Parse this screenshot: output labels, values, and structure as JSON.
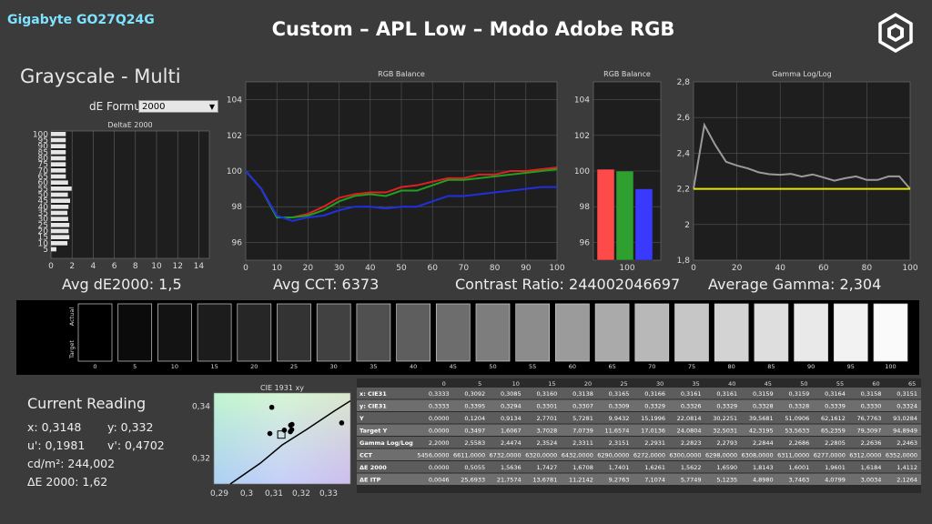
{
  "brand": "Gigabyte GO27Q24G",
  "title": "Custom – APL Low – Modo Adobe RGB",
  "section_title": "Grayscale - Multi",
  "de_formula": {
    "label": "dE Formula:",
    "value": "2000"
  },
  "stats": {
    "avg_de": "Avg dE2000: 1,5",
    "avg_cct": "Avg CCT: 6373",
    "contrast": "Contrast Ratio: 244002046697",
    "avg_gamma": "Average Gamma: 2,304"
  },
  "colors": {
    "bg": "#3b3b3b",
    "red": "#e02020",
    "green": "#20a020",
    "blue": "#2030e0",
    "target": "#e8e800",
    "gamma": "#9a9a9a"
  },
  "chart_data": [
    {
      "type": "bar",
      "title": "DeltaE 2000",
      "orientation": "horizontal",
      "categories": [
        "0",
        "5",
        "10",
        "15",
        "20",
        "25",
        "30",
        "35",
        "40",
        "45",
        "50",
        "55",
        "60",
        "65",
        "70",
        "75",
        "80",
        "85",
        "90",
        "95",
        "100"
      ],
      "values": [
        0.0,
        0.51,
        1.56,
        1.74,
        1.67,
        1.74,
        1.63,
        1.56,
        1.66,
        1.81,
        1.6,
        1.96,
        1.62,
        1.41,
        1.4,
        1.4,
        1.4,
        1.4,
        1.4,
        1.4,
        1.4
      ],
      "y_ticks": [
        "5",
        "10",
        "15",
        "20",
        "25",
        "30",
        "35",
        "40",
        "45",
        "50",
        "55",
        "60",
        "65",
        "70",
        "75",
        "80",
        "85",
        "90",
        "95",
        "100"
      ],
      "x_ticks": [
        "0",
        "2",
        "4",
        "6",
        "8",
        "10",
        "12",
        "14"
      ],
      "xlim": [
        0,
        15
      ]
    },
    {
      "type": "line",
      "title": "RGB Balance",
      "x": [
        0,
        5,
        10,
        15,
        20,
        25,
        30,
        35,
        40,
        45,
        50,
        55,
        60,
        65,
        70,
        75,
        80,
        85,
        90,
        95,
        100
      ],
      "series": [
        {
          "color": "#e02020",
          "values": [
            100,
            99.0,
            97.4,
            97.4,
            97.6,
            98.0,
            98.5,
            98.7,
            98.8,
            98.8,
            99.1,
            99.2,
            99.4,
            99.6,
            99.6,
            99.8,
            99.8,
            100.0,
            100.0,
            100.1,
            100.2
          ]
        },
        {
          "color": "#20a020",
          "values": [
            100,
            99.0,
            97.4,
            97.4,
            97.5,
            97.8,
            98.3,
            98.6,
            98.7,
            98.6,
            98.9,
            98.9,
            99.2,
            99.5,
            99.5,
            99.6,
            99.7,
            99.8,
            99.9,
            100.0,
            100.1
          ]
        },
        {
          "color": "#2030e0",
          "values": [
            100,
            99.0,
            97.5,
            97.2,
            97.4,
            97.5,
            97.8,
            98.0,
            98.0,
            97.9,
            98.0,
            98.0,
            98.3,
            98.6,
            98.6,
            98.7,
            98.8,
            98.9,
            99.0,
            99.1,
            99.1
          ]
        }
      ],
      "x_ticks": [
        "0",
        "10",
        "20",
        "30",
        "40",
        "50",
        "60",
        "70",
        "80",
        "90",
        "100"
      ],
      "y_ticks": [
        "96",
        "98",
        "100",
        "102",
        "104"
      ],
      "ylim": [
        95,
        105
      ],
      "xlim": [
        0,
        100
      ]
    },
    {
      "type": "bar",
      "title": "RGB Balance",
      "categories": [
        "R",
        "G",
        "B"
      ],
      "values": [
        100.1,
        100.0,
        99.0
      ],
      "colors": [
        "#ff4a4a",
        "#2fa02f",
        "#3a3aff"
      ],
      "x_label": "100",
      "y_ticks": [
        "96",
        "98",
        "100",
        "102",
        "104"
      ],
      "ylim": [
        95,
        105
      ]
    },
    {
      "type": "line",
      "title": "Gamma Log/Log",
      "x": [
        0,
        5,
        10,
        15,
        20,
        25,
        30,
        35,
        40,
        45,
        50,
        55,
        60,
        65,
        70,
        75,
        80,
        85,
        90,
        95,
        100
      ],
      "series": [
        {
          "color": "#9a9a9a",
          "values": [
            2.2,
            2.558,
            2.447,
            2.352,
            2.331,
            2.315,
            2.293,
            2.282,
            2.279,
            2.284,
            2.269,
            2.281,
            2.264,
            2.246,
            2.26,
            2.27,
            2.25,
            2.25,
            2.27,
            2.27,
            2.2
          ]
        },
        {
          "color": "#e8e800",
          "values": [
            2.2,
            2.2,
            2.2,
            2.2,
            2.2,
            2.2,
            2.2,
            2.2,
            2.2,
            2.2,
            2.2,
            2.2,
            2.2,
            2.2,
            2.2,
            2.2,
            2.2,
            2.2,
            2.2,
            2.2,
            2.2
          ]
        }
      ],
      "x_ticks": [
        "0",
        "20",
        "40",
        "60",
        "80",
        "100"
      ],
      "y_ticks": [
        "1,8",
        "2",
        "2,2",
        "2,4",
        "2,6",
        "2,8"
      ],
      "ylim": [
        1.8,
        2.8
      ],
      "xlim": [
        0,
        100
      ]
    },
    {
      "type": "scatter",
      "title": "CIE 1931 xy",
      "x_ticks": [
        "0,29",
        "0,3",
        "0,31",
        "0,32",
        "0,33"
      ],
      "y_ticks": [
        "0,32",
        "0,34"
      ],
      "xlim": [
        0.288,
        0.338
      ],
      "ylim": [
        0.31,
        0.345
      ],
      "points": [
        {
          "x": 0.3092,
          "y": 0.3395
        },
        {
          "x": 0.3085,
          "y": 0.3294
        },
        {
          "x": 0.316,
          "y": 0.3301
        },
        {
          "x": 0.3138,
          "y": 0.3307
        },
        {
          "x": 0.3165,
          "y": 0.3309
        },
        {
          "x": 0.3166,
          "y": 0.3329
        },
        {
          "x": 0.3161,
          "y": 0.3326
        },
        {
          "x": 0.3348,
          "y": 0.3335
        }
      ],
      "target": {
        "x": 0.3127,
        "y": 0.329
      }
    }
  ],
  "patches": {
    "labels": [
      "0",
      "5",
      "10",
      "15",
      "20",
      "25",
      "30",
      "35",
      "40",
      "45",
      "50",
      "55",
      "60",
      "65",
      "70",
      "75",
      "80",
      "85",
      "90",
      "95",
      "100"
    ],
    "colors": [
      "#000000",
      "#0b0b0b",
      "#131313",
      "#1c1c1c",
      "#262626",
      "#333333",
      "#414141",
      "#505050",
      "#5e5e5e",
      "#6d6d6d",
      "#7d7d7d",
      "#8c8c8c",
      "#9b9b9b",
      "#aaaaaa",
      "#b8b8b8",
      "#c6c6c6",
      "#d3d3d3",
      "#dedede",
      "#e9e9e9",
      "#f2f2f2",
      "#fafafa"
    ],
    "actual_label": "Actual",
    "target_label": "Target"
  },
  "reading": {
    "title": "Current Reading",
    "x": "x: 0,3148",
    "y": "y: 0,332",
    "u": "u': 0,1981",
    "v": "v': 0,4702",
    "lum": "cd/m²: 244,002",
    "de": "ΔE 2000: 1,62"
  },
  "table": {
    "columns": [
      "0",
      "5",
      "10",
      "15",
      "20",
      "25",
      "30",
      "35",
      "40",
      "45",
      "50",
      "55",
      "60",
      "65"
    ],
    "rows": [
      {
        "label": "x: CIE31",
        "values": [
          "0,3333",
          "0,3092",
          "0,3085",
          "0,3160",
          "0,3138",
          "0,3165",
          "0,3166",
          "0,3161",
          "0,3161",
          "0,3159",
          "0,3159",
          "0,3164",
          "0,3158",
          "0,3151"
        ]
      },
      {
        "label": "y: CIE31",
        "values": [
          "0,3333",
          "0,3395",
          "0,3294",
          "0,3301",
          "0,3307",
          "0,3309",
          "0,3329",
          "0,3326",
          "0,3329",
          "0,3328",
          "0,3328",
          "0,3339",
          "0,3330",
          "0,3324"
        ]
      },
      {
        "label": "Y",
        "values": [
          "0,0000",
          "0,1204",
          "0,9134",
          "2,7701",
          "5,7281",
          "9,9432",
          "15,1996",
          "22,0814",
          "30,2251",
          "39,5681",
          "51,0906",
          "62,1612",
          "76,7763",
          "93,0284"
        ]
      },
      {
        "label": "Target Y",
        "values": [
          "0,0000",
          "0,3497",
          "1,6067",
          "3,7028",
          "7,0739",
          "11,6574",
          "17,0136",
          "24,0804",
          "32,5031",
          "42,3195",
          "53,5633",
          "65,2359",
          "79,3097",
          "94,8949"
        ]
      },
      {
        "label": "Gamma Log/Log",
        "values": [
          "2,2000",
          "2,5583",
          "2,4474",
          "2,3524",
          "2,3311",
          "2,3151",
          "2,2931",
          "2,2823",
          "2,2793",
          "2,2844",
          "2,2686",
          "2,2805",
          "2,2636",
          "2,2463"
        ]
      },
      {
        "label": "CCT",
        "values": [
          "5456,0000",
          "6611,0000",
          "6732,0000",
          "6320,0000",
          "6432,0000",
          "6290,0000",
          "6272,0000",
          "6300,0000",
          "6298,0000",
          "6308,0000",
          "6311,0000",
          "6277,0000",
          "6312,0000",
          "6352,0000"
        ]
      },
      {
        "label": "ΔE 2000",
        "values": [
          "0,0000",
          "0,5055",
          "1,5636",
          "1,7427",
          "1,6708",
          "1,7401",
          "1,6261",
          "1,5622",
          "1,6590",
          "1,8143",
          "1,6001",
          "1,9601",
          "1,6184",
          "1,4112"
        ]
      },
      {
        "label": "ΔE ITP",
        "values": [
          "0,0046",
          "25,6933",
          "21,7574",
          "13,6781",
          "11,2142",
          "9,2763",
          "7,1074",
          "5,7749",
          "5,1235",
          "4,8980",
          "3,7463",
          "4,0799",
          "3,0034",
          "2,1264"
        ]
      }
    ]
  }
}
